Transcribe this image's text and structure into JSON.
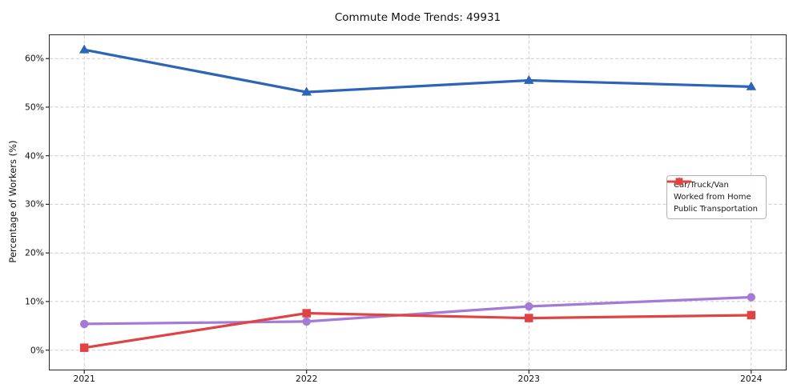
{
  "title": "Commute Mode Trends: 49931",
  "chart_data": {
    "type": "line",
    "title": "Commute Mode Trends: 49931",
    "x": [
      "2021",
      "2022",
      "2023",
      "2024"
    ],
    "series": [
      {
        "name": "Car/Truck/Van",
        "marker": "triangle",
        "color": "#2b64b8",
        "values": [
          61.8,
          53.1,
          55.5,
          54.2
        ]
      },
      {
        "name": "Worked from Home",
        "marker": "circle",
        "color": "#a47ad6",
        "values": [
          5.4,
          5.9,
          9.0,
          10.9
        ]
      },
      {
        "name": "Public Transportation",
        "marker": "square",
        "color": "#e04343",
        "values": [
          0.5,
          7.6,
          6.6,
          7.2
        ]
      }
    ],
    "xlabel": "",
    "ylabel": "Percentage of Workers (%)",
    "yticks": [
      0,
      10,
      20,
      30,
      40,
      50,
      60
    ],
    "ytick_labels": [
      "0%",
      "10%",
      "20%",
      "30%",
      "40%",
      "50%",
      "60%"
    ],
    "xtick_labels": [
      "2021",
      "2022",
      "2023",
      "2024"
    ],
    "ylim": [
      -4,
      64.8
    ],
    "grid": true,
    "grid_style": "dashed",
    "legend_position": "center-right"
  },
  "colors": {
    "grid": "#cccccc",
    "spine": "#262626",
    "text": "#111111",
    "legend_border": "#b3b3b3"
  }
}
